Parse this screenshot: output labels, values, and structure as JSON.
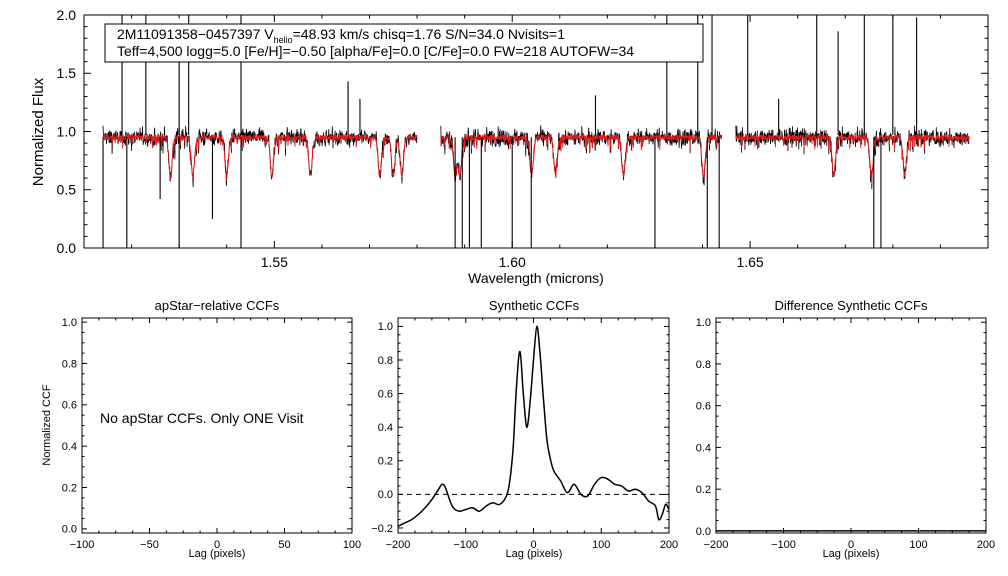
{
  "colors": {
    "axis": "#000000",
    "spectrum": "#000000",
    "model": "#e41a1c",
    "ccf": "#000000"
  },
  "chart_data": [
    {
      "type": "line",
      "id": "spectrum",
      "title": "",
      "xlabel": "Wavelength (microns)",
      "ylabel": "Normalized Flux",
      "xlim": [
        1.51,
        1.7
      ],
      "ylim": [
        0.0,
        2.0
      ],
      "x_ticks": [
        "1.55",
        "1.60",
        "1.65"
      ],
      "x_tick_values": [
        1.55,
        1.6,
        1.65
      ],
      "y_ticks": [
        "0.0",
        "0.5",
        "1.0",
        "1.5",
        "2.0"
      ],
      "y_tick_values": [
        0.0,
        0.5,
        1.0,
        1.5,
        2.0
      ],
      "chips": [
        [
          1.514,
          1.58
        ],
        [
          1.585,
          1.644
        ],
        [
          1.647,
          1.696
        ]
      ],
      "series": [
        {
          "name": "observed spectrum",
          "color": "black",
          "continuum": 0.95,
          "noise": 0.05
        },
        {
          "name": "best-fit model",
          "color": "red",
          "continuum": 0.95,
          "noise": 0.015
        }
      ],
      "strong_lines_red": [
        1.5282,
        1.5329,
        1.54,
        1.5495,
        1.5576,
        1.5722,
        1.575,
        1.5768,
        1.588,
        1.589,
        1.6041,
        1.6091,
        1.6234,
        1.6402,
        1.6676,
        1.6755,
        1.6825
      ],
      "spikes": [
        {
          "x": 1.518,
          "y": 2.0
        },
        {
          "x": 1.523,
          "y": 2.0
        },
        {
          "x": 1.53,
          "y": 1.7
        },
        {
          "x": 1.532,
          "y": 2.0
        },
        {
          "x": 1.543,
          "y": 2.0
        },
        {
          "x": 1.5655,
          "y": 1.43
        },
        {
          "x": 1.568,
          "y": 1.28
        },
        {
          "x": 1.6175,
          "y": 1.31
        },
        {
          "x": 1.6325,
          "y": 2.0
        },
        {
          "x": 1.639,
          "y": 2.0
        },
        {
          "x": 1.642,
          "y": 2.0
        },
        {
          "x": 1.6495,
          "y": 2.0
        },
        {
          "x": 1.656,
          "y": 1.28
        },
        {
          "x": 1.664,
          "y": 2.0
        },
        {
          "x": 1.6685,
          "y": 1.86
        },
        {
          "x": 1.674,
          "y": 2.0
        },
        {
          "x": 1.68,
          "y": 2.0
        },
        {
          "x": 1.685,
          "y": 1.98
        },
        {
          "x": 1.695,
          "y": 0.98
        }
      ],
      "dips": [
        {
          "x": 1.514,
          "y": 0.0
        },
        {
          "x": 1.519,
          "y": 0.0
        },
        {
          "x": 1.526,
          "y": 0.42
        },
        {
          "x": 1.53,
          "y": 0.0
        },
        {
          "x": 1.537,
          "y": 0.25
        },
        {
          "x": 1.543,
          "y": 0.0
        },
        {
          "x": 1.588,
          "y": 0.0
        },
        {
          "x": 1.5895,
          "y": 0.0
        },
        {
          "x": 1.591,
          "y": 0.0
        },
        {
          "x": 1.5935,
          "y": 0.0
        },
        {
          "x": 1.6,
          "y": 0.0
        },
        {
          "x": 1.604,
          "y": 0.0
        },
        {
          "x": 1.63,
          "y": 0.0
        },
        {
          "x": 1.641,
          "y": 0.0
        },
        {
          "x": 1.6435,
          "y": 0.0
        },
        {
          "x": 1.676,
          "y": 0.0
        },
        {
          "x": 1.6775,
          "y": 0.0
        }
      ],
      "legend_line1_a": "2M11091358−0457397  V",
      "legend_line1_sub": "helio",
      "legend_line1_b": "=48.93 km/s  chisq=1.76  S/N=34.0  Nvisits=1",
      "legend_line2": "Teff=4,500 logg=5.0 [Fe/H]=−0.50 [alpha/Fe]=0.0 [C/Fe]=0.0 FW=218 AUTOFW=34"
    },
    {
      "type": "line",
      "id": "apstar",
      "title": "apStar−relative CCFs",
      "xlabel": "Lag (pixels)",
      "ylabel": "Normalized CCF",
      "xlim": [
        -100,
        100
      ],
      "ylim": [
        -0.02,
        1.02
      ],
      "x_ticks": [
        "−100",
        "−50",
        "0",
        "50",
        "100"
      ],
      "x_tick_values": [
        -100,
        -50,
        0,
        50,
        100
      ],
      "y_ticks": [
        "0.0",
        "0.2",
        "0.4",
        "0.6",
        "0.8",
        "1.0"
      ],
      "y_tick_values": [
        0.0,
        0.2,
        0.4,
        0.6,
        0.8,
        1.0
      ],
      "annotation": "No apStar CCFs.  Only ONE Visit",
      "series": []
    },
    {
      "type": "line",
      "id": "synthetic",
      "title": "Synthetic CCFs",
      "xlabel": "Lag (pixels)",
      "ylabel": "",
      "xlim": [
        -200,
        200
      ],
      "ylim": [
        -0.23,
        1.05
      ],
      "x_ticks": [
        "−200",
        "−100",
        "0",
        "100",
        "200"
      ],
      "x_tick_values": [
        -200,
        -100,
        0,
        100,
        200
      ],
      "y_ticks": [
        "−0.2",
        "0.0",
        "0.2",
        "0.4",
        "0.6",
        "0.8",
        "1.0"
      ],
      "y_tick_values": [
        -0.2,
        0.0,
        0.2,
        0.4,
        0.6,
        0.8,
        1.0
      ],
      "zero_line": true,
      "series": [
        {
          "name": "CCF",
          "x": [
            -200,
            -190,
            -180,
            -170,
            -160,
            -150,
            -140,
            -135,
            -130,
            -120,
            -110,
            -100,
            -90,
            -80,
            -70,
            -60,
            -50,
            -40,
            -35,
            -30,
            -25,
            -20,
            -15,
            -10,
            -5,
            0,
            5,
            10,
            15,
            20,
            25,
            30,
            40,
            50,
            60,
            70,
            80,
            90,
            100,
            110,
            120,
            130,
            140,
            150,
            160,
            170,
            180,
            185,
            190,
            195,
            200
          ],
          "y": [
            -0.19,
            -0.17,
            -0.15,
            -0.12,
            -0.08,
            -0.03,
            0.03,
            0.06,
            0.04,
            -0.07,
            -0.1,
            -0.09,
            -0.08,
            -0.1,
            -0.07,
            -0.05,
            -0.06,
            -0.01,
            0.08,
            0.28,
            0.65,
            0.85,
            0.6,
            0.4,
            0.55,
            0.8,
            1.0,
            0.82,
            0.55,
            0.32,
            0.21,
            0.14,
            0.08,
            0.01,
            0.06,
            0.0,
            -0.01,
            0.06,
            0.1,
            0.09,
            0.06,
            0.05,
            0.02,
            0.03,
            0.01,
            -0.04,
            -0.07,
            -0.15,
            -0.12,
            -0.06,
            -0.09
          ]
        }
      ]
    },
    {
      "type": "line",
      "id": "difference",
      "title": "Difference Synthetic CCFs",
      "xlabel": "Lag (pixels)",
      "ylabel": "",
      "xlim": [
        -200,
        200
      ],
      "ylim": [
        -0.01,
        1.02
      ],
      "x_ticks": [
        "−200",
        "−100",
        "0",
        "100",
        "200"
      ],
      "x_tick_values": [
        -200,
        -100,
        0,
        100,
        200
      ],
      "y_ticks": [
        "0.0",
        "0.2",
        "0.4",
        "0.6",
        "0.8",
        "1.0"
      ],
      "y_tick_values": [
        0.0,
        0.2,
        0.4,
        0.6,
        0.8,
        1.0
      ],
      "series": [
        {
          "name": "difference",
          "x": [
            -200,
            200
          ],
          "y": [
            0.0,
            0.0
          ]
        }
      ]
    }
  ]
}
